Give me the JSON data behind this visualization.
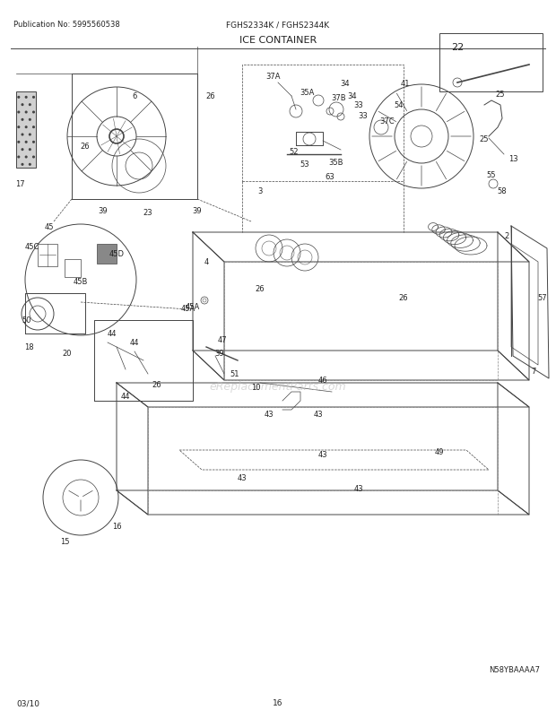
{
  "title": "ICE CONTAINER",
  "pub_no": "Publication No: 5995560538",
  "model": "FGHS2334K / FGHS2344K",
  "diagram_id": "N58YBAAAA7",
  "date": "03/10",
  "page": "16",
  "bg_color": "#ffffff",
  "lc": "#444444",
  "tc": "#222222",
  "watermark": "eReplacementParts.com",
  "figsize": [
    6.2,
    8.03
  ],
  "dpi": 100
}
